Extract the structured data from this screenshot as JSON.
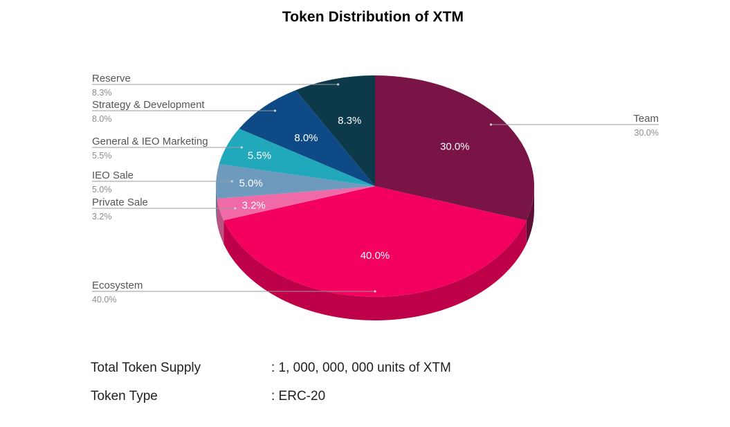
{
  "chart_data": {
    "type": "pie",
    "title": "Token Distribution of XTM",
    "slices": [
      {
        "name": "Team",
        "value": 30.0,
        "label": "30.0%",
        "color": "#7a1446"
      },
      {
        "name": "Ecosystem",
        "value": 40.0,
        "label": "40.0%",
        "color": "#f4005e"
      },
      {
        "name": "Private Sale",
        "value": 3.2,
        "label": "3.2%",
        "color": "#ef6aa6"
      },
      {
        "name": "IEO Sale",
        "value": 5.0,
        "label": "5.0%",
        "color": "#6e9bbd"
      },
      {
        "name": "General & IEO Marketing",
        "value": 5.5,
        "label": "5.5%",
        "color": "#22a8bb"
      },
      {
        "name": "Strategy & Development",
        "value": 8.0,
        "label": "8.0%",
        "color": "#0e4b86"
      },
      {
        "name": "Reserve",
        "value": 8.3,
        "label": "8.3%",
        "color": "#0d3a4a"
      }
    ],
    "legend": "callouts"
  },
  "info": {
    "rows": [
      {
        "label": "Total Token Supply",
        "value": ": 1, 000, 000, 000 units of XTM"
      },
      {
        "label": "Token Type",
        "value": ": ERC-20"
      }
    ]
  }
}
